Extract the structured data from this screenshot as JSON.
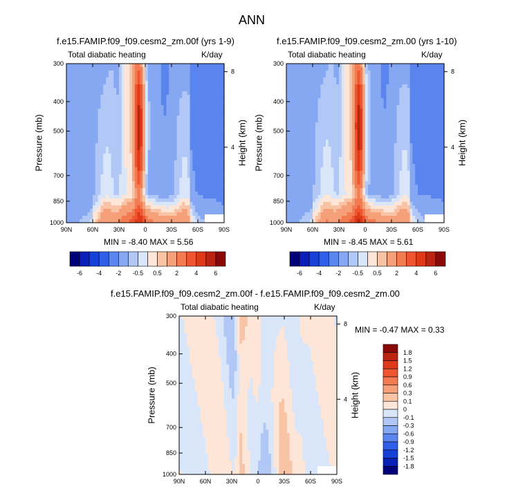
{
  "figure": {
    "title": "ANN"
  },
  "chart_data": [
    {
      "type": "heatmap",
      "title": "f.e15.FAMIP.f09_f09.cesm2_zm.00f (yrs 1-9)",
      "left_label": "Total diabatic heating",
      "right_label": "K/day",
      "ylabel": "Pressure (mb)",
      "ylabel_right": "Height (km)",
      "x_ticks": [
        "90N",
        "60N",
        "30N",
        "0",
        "30S",
        "60S",
        "90S"
      ],
      "y_ticks": [
        "300",
        "400",
        "500",
        "700",
        "850",
        "1000"
      ],
      "y_right_ticks": [
        "8",
        "4"
      ],
      "xlim": [
        90,
        -90
      ],
      "ylim": [
        1000,
        300
      ],
      "y_scale": "log",
      "stats": "MIN =  -8.40   MAX =   5.56",
      "min": -8.4,
      "max": 5.56
    },
    {
      "type": "heatmap",
      "title": "f.e15.FAMIP.f09_f09.cesm2_zm.00 (yrs 1-10)",
      "left_label": "Total diabatic heating",
      "right_label": "K/day",
      "ylabel": "Pressure (mb)",
      "ylabel_right": "Height (km)",
      "x_ticks": [
        "90N",
        "60N",
        "30N",
        "0",
        "30S",
        "60S",
        "90S"
      ],
      "y_ticks": [
        "300",
        "400",
        "500",
        "700",
        "850",
        "1000"
      ],
      "y_right_ticks": [
        "8",
        "4"
      ],
      "xlim": [
        90,
        -90
      ],
      "ylim": [
        1000,
        300
      ],
      "y_scale": "log",
      "stats": "MIN =  -8.45   MAX =   5.61",
      "min": -8.45,
      "max": 5.61
    },
    {
      "type": "heatmap",
      "title": "f.e15.FAMIP.f09_f09.cesm2_zm.00f - f.e15.FAMIP.f09_f09.cesm2_zm.00",
      "left_label": "Total diabatic heating",
      "right_label": "K/day",
      "ylabel": "Pressure (mb)",
      "ylabel_right": "Height (km)",
      "x_ticks": [
        "90N",
        "60N",
        "30N",
        "0",
        "30S",
        "60S",
        "90S"
      ],
      "y_ticks": [
        "300",
        "400",
        "500",
        "700",
        "850",
        "1000"
      ],
      "y_right_ticks": [
        "8",
        "4"
      ],
      "xlim": [
        90,
        -90
      ],
      "ylim": [
        1000,
        300
      ],
      "y_scale": "log",
      "stats": "MIN =  -0.47   MAX =   0.33",
      "min": -0.47,
      "max": 0.33
    }
  ],
  "colorbars": {
    "top": {
      "labels": [
        "-6",
        "-4",
        "-2",
        "-0.5",
        "0.5",
        "2",
        "4",
        "6"
      ],
      "colors": [
        "#00007a",
        "#0a1fb5",
        "#1740d8",
        "#2f5fe8",
        "#5a85ef",
        "#86a8f2",
        "#b1c7f6",
        "#d9e6fa",
        "#fde6d8",
        "#f9c4a6",
        "#f6a07a",
        "#f37b52",
        "#ef5530",
        "#de3a1a",
        "#bb2410",
        "#8a0808"
      ]
    },
    "bottom": {
      "labels": [
        "1.8",
        "1.5",
        "1.2",
        "0.9",
        "0.6",
        "0.3",
        "0.1",
        "0",
        "-0.1",
        "-0.3",
        "-0.6",
        "-0.9",
        "-1.2",
        "-1.5",
        "-1.8"
      ],
      "colors": [
        "#8a0808",
        "#bb2410",
        "#de3a1a",
        "#ef5530",
        "#f37b52",
        "#f6a07a",
        "#f9c4a6",
        "#fde6d8",
        "#d9e6fa",
        "#b1c7f6",
        "#86a8f2",
        "#5a85ef",
        "#2f5fe8",
        "#1740d8",
        "#0a1fb5",
        "#00007a"
      ]
    }
  }
}
